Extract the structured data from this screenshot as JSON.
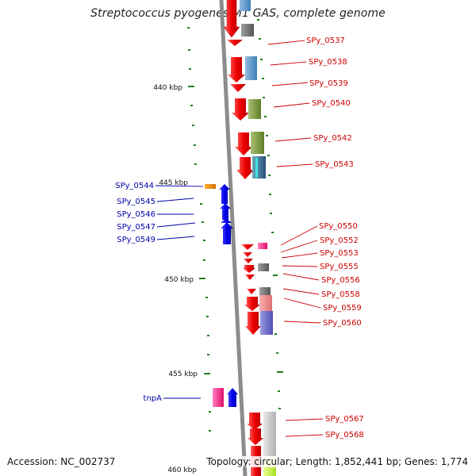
{
  "title": "Streptococcus pyogenes M1 GAS, complete genome",
  "scale_labels": [
    "440 kbp",
    "445 kbp",
    "450 kbp",
    "455 kbp",
    "460 kbp"
  ],
  "right_genes": [
    "SPy_0537",
    "SPy_0538",
    "SPy_0539",
    "SPy_0540",
    "SPy_0542",
    "SPy_0543",
    "SPy_0550",
    "SPy_0552",
    "SPy_0553",
    "SPy_0555",
    "SPy_0556",
    "SPy_0558",
    "SPy_0559",
    "SPy_0560",
    "SPy_0567",
    "SPy_0568"
  ],
  "left_genes": [
    "SPy_0544",
    "SPy_0545",
    "SPy_0546",
    "SPy_0547",
    "SPy_0549",
    "tnpA"
  ],
  "footer": {
    "accession": "Accession: NC_002737",
    "topology": "Topology: circular; Length: 1,852,441 bp; Genes: 1,774"
  },
  "colors": {
    "forward_gene": "#e00000",
    "reverse_gene": "#0000ee",
    "right_label": "#cc0000",
    "left_label": "#0000aa",
    "axis": "#888888",
    "tick": "#1a7a1a"
  }
}
